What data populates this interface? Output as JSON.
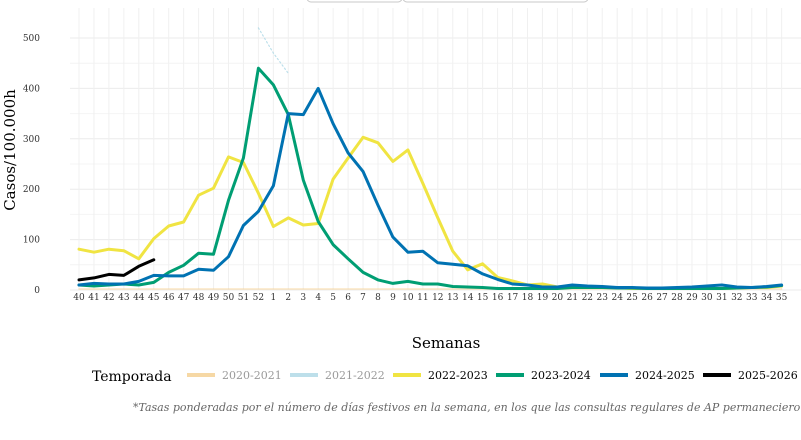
{
  "chart_data": {
    "type": "line",
    "title": "",
    "xlabel": "Semanas",
    "ylabel": "Casos/100.000h",
    "ylim": [
      0,
      500
    ],
    "yticks": [
      "0",
      "100",
      "200",
      "300",
      "400",
      "500"
    ],
    "categories": [
      "40",
      "41",
      "42",
      "43",
      "44",
      "45",
      "46",
      "47",
      "48",
      "49",
      "50",
      "51",
      "52",
      "1",
      "2",
      "3",
      "4",
      "5",
      "6",
      "7",
      "8",
      "9",
      "10",
      "11",
      "12",
      "13",
      "14",
      "15",
      "16",
      "17",
      "18",
      "19",
      "20",
      "21",
      "22",
      "23",
      "24",
      "25",
      "26",
      "27",
      "28",
      "29",
      "30",
      "31",
      "32",
      "33",
      "34",
      "35"
    ],
    "series": [
      {
        "name": "2020-2021",
        "color": "#f5cf8f",
        "style": "faded",
        "values": [
          2,
          2,
          2,
          2,
          2,
          2,
          2,
          2,
          2,
          2,
          2,
          2,
          2,
          2,
          2,
          2,
          2,
          2,
          2,
          2,
          2,
          2,
          2,
          2,
          2,
          2,
          2,
          2,
          2,
          2,
          2,
          2,
          2,
          2,
          2,
          2,
          2,
          2,
          2,
          2,
          2,
          2,
          2,
          2,
          2,
          2,
          2,
          2
        ]
      },
      {
        "name": "2021-2022",
        "color": "#add8e6",
        "style": "dotted",
        "values": [
          null,
          null,
          null,
          null,
          null,
          null,
          null,
          null,
          null,
          null,
          null,
          null,
          520,
          470,
          430,
          null,
          null,
          null,
          null,
          null,
          null,
          null,
          null,
          null,
          null,
          null,
          null,
          null,
          null,
          null,
          null,
          null,
          null,
          null,
          null,
          null,
          null,
          null,
          null,
          null,
          null,
          null,
          null,
          null,
          null,
          null,
          null,
          null
        ]
      },
      {
        "name": "2022-2023",
        "color": "#f0e442",
        "style": "solid",
        "values": [
          81,
          75,
          81,
          78,
          62,
          102,
          127,
          135,
          188,
          202,
          264,
          253,
          192,
          126,
          143,
          129,
          132,
          220,
          262,
          303,
          292,
          255,
          278,
          212,
          143,
          77,
          40,
          52,
          25,
          18,
          10,
          12,
          6,
          8,
          6,
          5,
          5,
          3,
          3,
          3,
          4,
          3,
          3,
          3,
          4,
          5,
          5,
          8
        ]
      },
      {
        "name": "2023-2024",
        "color": "#009e73",
        "style": "solid",
        "values": [
          10,
          8,
          10,
          12,
          10,
          15,
          35,
          49,
          73,
          71,
          178,
          262,
          440,
          407,
          348,
          218,
          136,
          90,
          62,
          35,
          20,
          13,
          17,
          12,
          12,
          7,
          6,
          5,
          3,
          3,
          3,
          3,
          3,
          5,
          5,
          5,
          4,
          4,
          3,
          3,
          3,
          3,
          3,
          3,
          4,
          5,
          6,
          9
        ]
      },
      {
        "name": "2024-2025",
        "color": "#0072b2",
        "style": "solid",
        "values": [
          10,
          13,
          12,
          12,
          17,
          29,
          28,
          28,
          41,
          39,
          66,
          128,
          156,
          207,
          350,
          348,
          400,
          330,
          272,
          235,
          168,
          105,
          75,
          77,
          54,
          51,
          48,
          32,
          21,
          12,
          10,
          6,
          6,
          10,
          8,
          7,
          5,
          5,
          4,
          4,
          5,
          6,
          8,
          10,
          6,
          5,
          7,
          10
        ]
      },
      {
        "name": "2025-2026",
        "color": "#000000",
        "style": "solid",
        "values": [
          20,
          24,
          31,
          29,
          47,
          60,
          null,
          null,
          null,
          null,
          null,
          null,
          null,
          null,
          null,
          null,
          null,
          null,
          null,
          null,
          null,
          null,
          null,
          null,
          null,
          null,
          null,
          null,
          null,
          null,
          null,
          null,
          null,
          null,
          null,
          null,
          null,
          null,
          null,
          null,
          null,
          null,
          null,
          null,
          null,
          null,
          null,
          null
        ]
      }
    ],
    "legend": {
      "title": "Temporada",
      "position": "bottom"
    },
    "grid": true
  },
  "footnote": "*Tasas ponderadas por el número de días festivos en la semana, en los que las consultas regulares de AP permanecieron cerradas"
}
